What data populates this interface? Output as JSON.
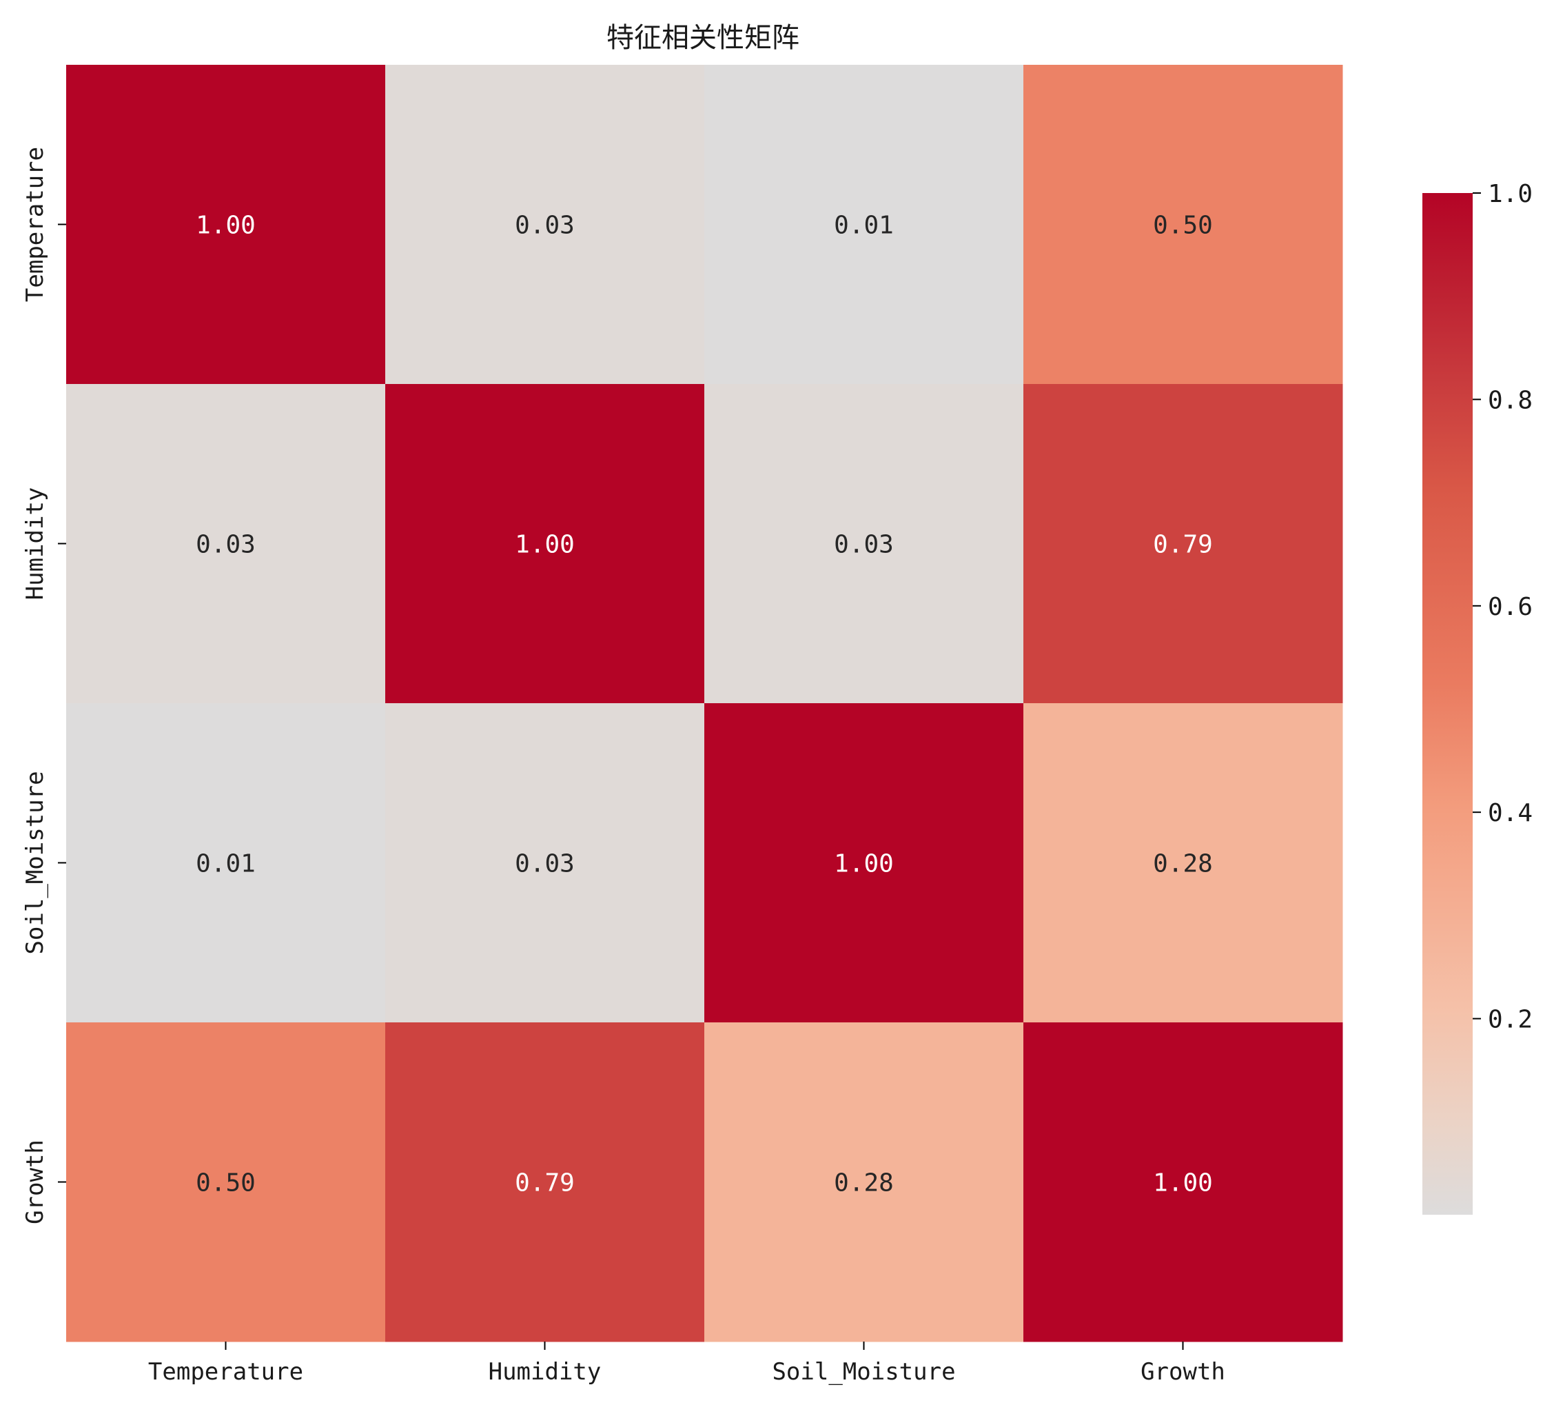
{
  "chart_data": {
    "type": "heatmap",
    "title": "特征相关性矩阵",
    "rows": [
      "Temperature",
      "Humidity",
      "Soil_Moisture",
      "Growth"
    ],
    "cols": [
      "Temperature",
      "Humidity",
      "Soil_Moisture",
      "Growth"
    ],
    "values": [
      [
        1.0,
        0.03,
        0.01,
        0.5
      ],
      [
        0.03,
        1.0,
        0.03,
        0.79
      ],
      [
        0.01,
        0.03,
        1.0,
        0.28
      ],
      [
        0.5,
        0.79,
        0.28,
        1.0
      ]
    ],
    "annotations": [
      [
        "1.00",
        "0.03",
        "0.01",
        "0.50"
      ],
      [
        "0.03",
        "1.00",
        "0.03",
        "0.79"
      ],
      [
        "0.01",
        "0.03",
        "1.00",
        "0.28"
      ],
      [
        "0.50",
        "0.79",
        "0.28",
        "1.00"
      ]
    ],
    "colormap": "coolwarm (upper half)",
    "vmin": 0.01,
    "vmax": 1.0,
    "colorbar": {
      "ticks": [
        0.2,
        0.4,
        0.6,
        0.8,
        1.0
      ],
      "tick_labels": [
        "0.2",
        "0.4",
        "0.6",
        "0.8",
        "1.0"
      ],
      "placement": "right"
    },
    "grid": false
  }
}
